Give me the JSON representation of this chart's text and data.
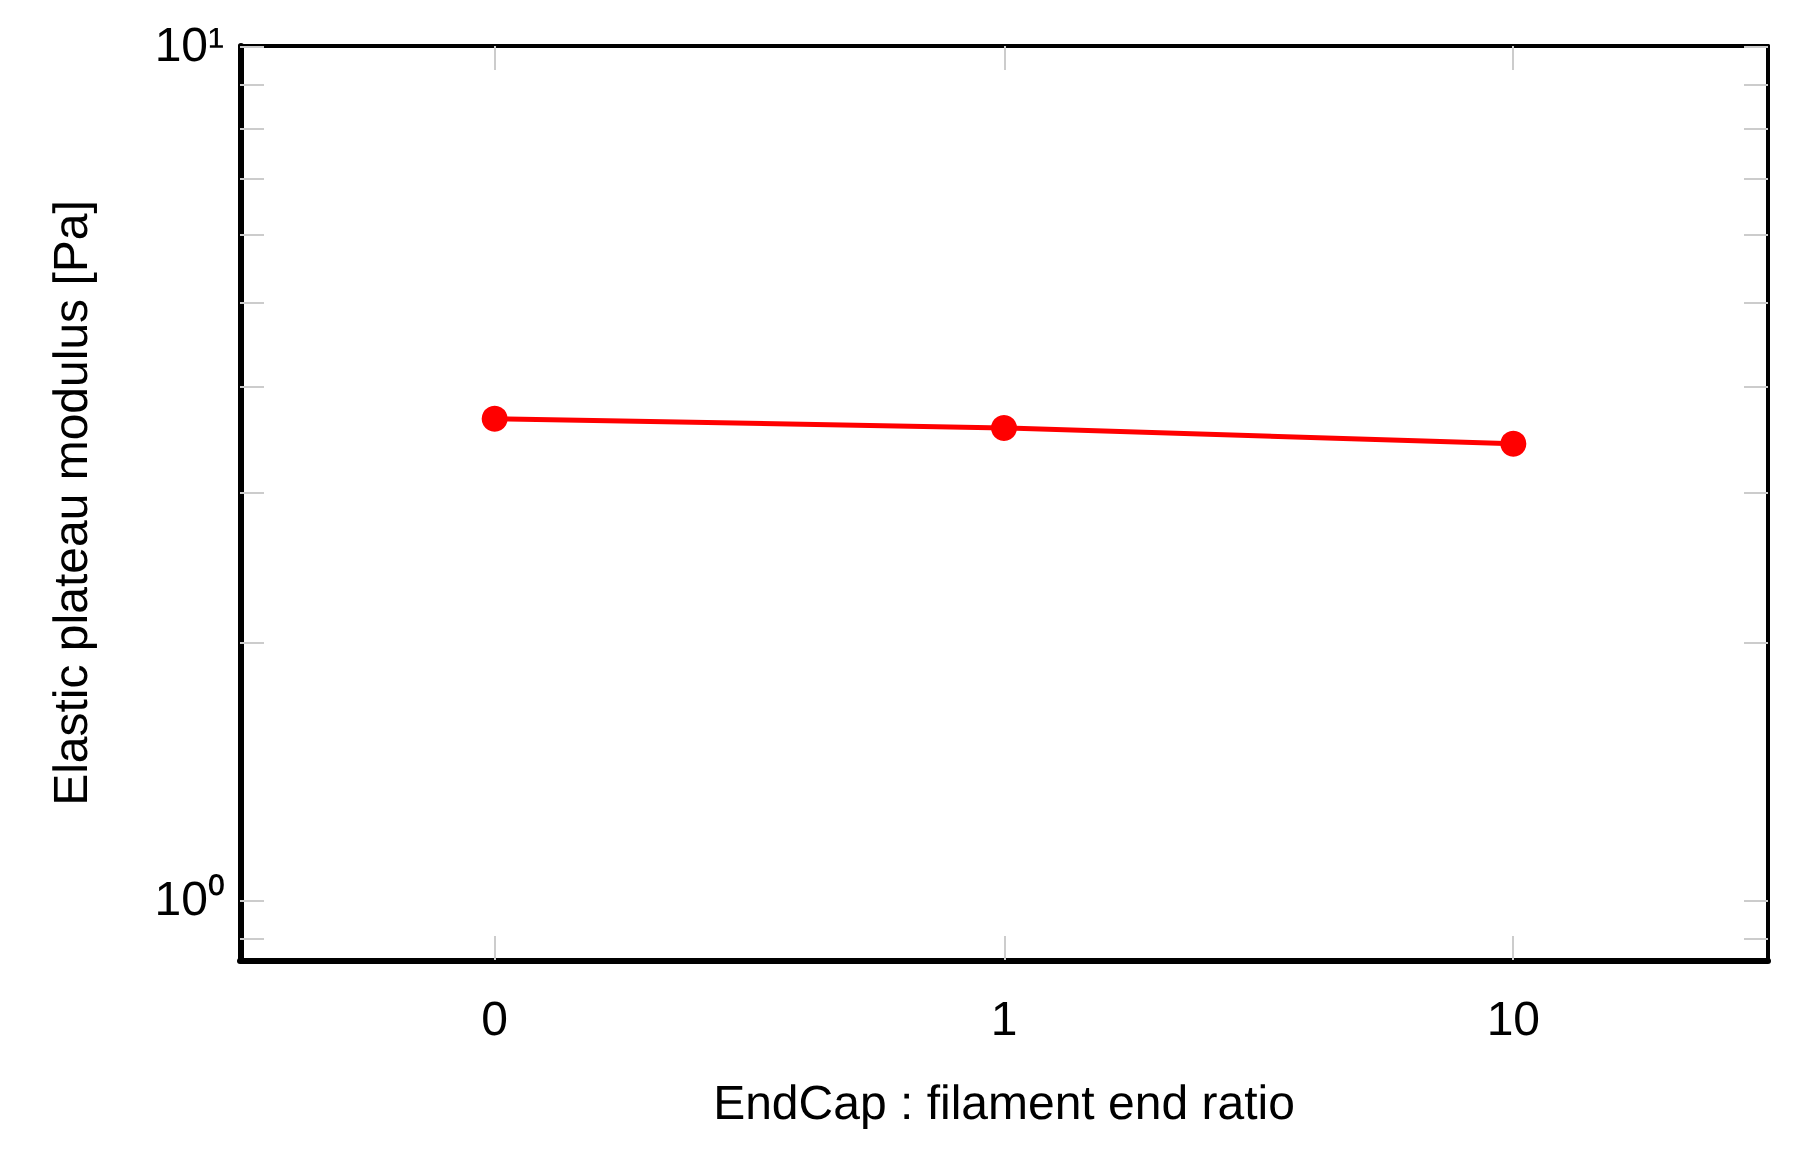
{
  "chart_data": {
    "type": "line",
    "xlabel": "EndCap : filament end ratio",
    "ylabel": "Elastic plateau modulus [Pa]",
    "categories": [
      "0",
      "1",
      "10"
    ],
    "series": [
      {
        "color": "#ff0000",
        "values": [
          3.66,
          3.57,
          3.42
        ]
      }
    ],
    "log": "y",
    "ylim": [
      0.85,
      10
    ],
    "yticks": [
      {
        "value": 0.9,
        "label": null
      },
      {
        "value": 1,
        "label": "10⁰"
      },
      {
        "value": 2,
        "label": null
      },
      {
        "value": 3,
        "label": null
      },
      {
        "value": 4,
        "label": null
      },
      {
        "value": 5,
        "label": null
      },
      {
        "value": 6,
        "label": null
      },
      {
        "value": 7,
        "label": null
      },
      {
        "value": 8,
        "label": null
      },
      {
        "value": 9,
        "label": null
      },
      {
        "value": 10,
        "label": "10¹"
      }
    ],
    "marker": "circle",
    "line_style": "solid",
    "grid": false
  }
}
